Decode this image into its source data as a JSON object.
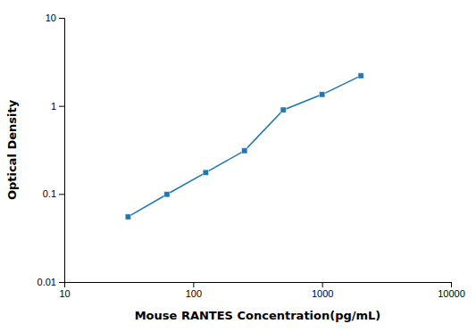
{
  "chart_data": {
    "type": "line",
    "x": [
      31.25,
      62.5,
      125,
      250,
      500,
      1000,
      2000
    ],
    "values": [
      0.055,
      0.099,
      0.175,
      0.31,
      0.9,
      1.35,
      2.2
    ],
    "xlabel": "Mouse RANTES Concentration(pg/mL)",
    "ylabel": "Optical Density",
    "xlim": [
      10,
      10000
    ],
    "ylim": [
      0.01,
      10
    ],
    "xticks": [
      10,
      100,
      1000,
      10000
    ],
    "yticks": [
      0.01,
      0.1,
      1,
      10
    ],
    "log": true,
    "marker": "square"
  }
}
